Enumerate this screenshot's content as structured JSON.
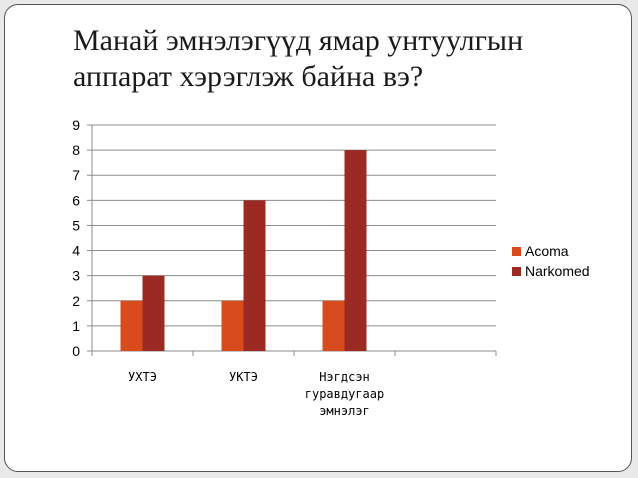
{
  "slide": {
    "title_lines": [
      "Манай эмнэлэгүүд ямар унтуулгын",
      "аппарат хэрэглэж байна вэ?"
    ]
  },
  "chart_data": {
    "type": "bar",
    "title": "",
    "xlabel": "",
    "ylabel": "",
    "categories": [
      [
        "УХТЭ"
      ],
      [
        "УКТЭ"
      ],
      [
        "Нэгдсэн",
        "гуравдугаар",
        "эмнэлэг"
      ],
      [
        ""
      ]
    ],
    "series": [
      {
        "name": "Acoma",
        "values": [
          2,
          2,
          2,
          null
        ],
        "color": "#d84b1c"
      },
      {
        "name": "Narkomed",
        "values": [
          3,
          6,
          8,
          null
        ],
        "color": "#9b2a22"
      }
    ],
    "ylim": [
      0,
      9
    ],
    "yticks": [
      0,
      1,
      2,
      3,
      4,
      5,
      6,
      7,
      8,
      9
    ],
    "grid": true,
    "legend_position": "right"
  }
}
